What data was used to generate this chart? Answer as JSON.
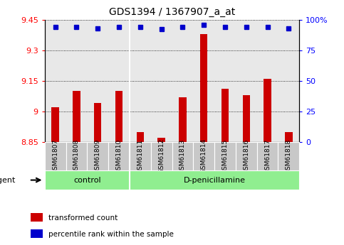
{
  "title": "GDS1394 / 1367907_a_at",
  "samples": [
    "GSM61807",
    "GSM61808",
    "GSM61809",
    "GSM61810",
    "GSM61811",
    "GSM61812",
    "GSM61813",
    "GSM61814",
    "GSM61815",
    "GSM61816",
    "GSM61817",
    "GSM61818"
  ],
  "red_values": [
    9.02,
    9.1,
    9.04,
    9.1,
    8.9,
    8.87,
    9.07,
    9.38,
    9.11,
    9.08,
    9.16,
    8.9
  ],
  "blue_values": [
    94,
    94,
    93,
    94,
    94,
    92,
    94,
    96,
    94,
    94,
    94,
    93
  ],
  "ylim_left": [
    8.85,
    9.45
  ],
  "ylim_right": [
    0,
    100
  ],
  "yticks_left": [
    8.85,
    9.0,
    9.15,
    9.3,
    9.45
  ],
  "yticks_right": [
    0,
    25,
    50,
    75,
    100
  ],
  "ytick_labels_left": [
    "8.85",
    "9",
    "9.15",
    "9.3",
    "9.45"
  ],
  "ytick_labels_right": [
    "0",
    "25",
    "50",
    "75",
    "100%"
  ],
  "groups": [
    {
      "label": "control",
      "start": 0,
      "end": 4
    },
    {
      "label": "D-penicillamine",
      "start": 4,
      "end": 12
    }
  ],
  "group_divider": 3.5,
  "agent_label": "agent",
  "legend_items": [
    {
      "color": "#CC0000",
      "label": "transformed count"
    },
    {
      "color": "#0000CC",
      "label": "percentile rank within the sample"
    }
  ],
  "bar_color": "#CC0000",
  "dot_color": "#0000CC",
  "bar_width": 0.35,
  "bg_plot": "#E8E8E8",
  "bg_labels": "#C8C8C8",
  "bg_groups": "#90EE90"
}
